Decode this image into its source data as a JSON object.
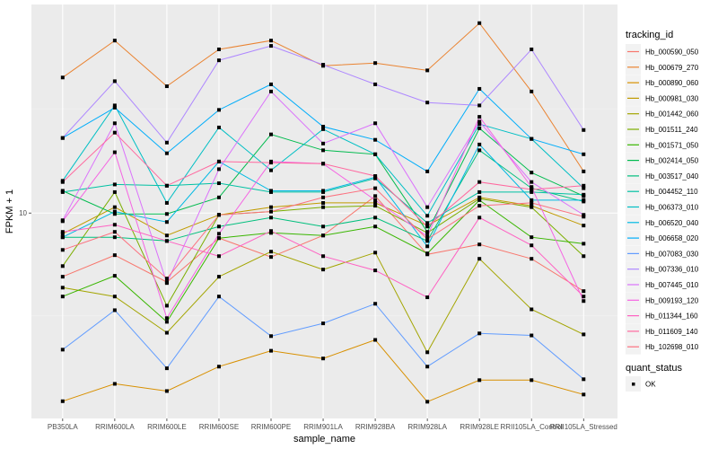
{
  "chart_data": {
    "type": "line",
    "title": "",
    "xlabel": "sample_name",
    "ylabel": "FPKM + 1",
    "yscale": "log10",
    "ylim": [
      2.54,
      40.2
    ],
    "yticks": [
      10
    ],
    "ytick_labels": [
      "10"
    ],
    "grid": true,
    "legend_position": "right",
    "categories": [
      "PB350LA",
      "RRIM600LA",
      "RRIM600LE",
      "RRIM600SE",
      "RRIM600PE",
      "RRIM901LA",
      "RRIM928BA",
      "RRIM928LA",
      "RRIM928LE",
      "RRII105LA_Control",
      "RRII105LA_Stressed"
    ],
    "legend": {
      "color_title": "tracking_id",
      "shape_title": "quant_status",
      "shape_entries": [
        "OK"
      ]
    },
    "series": [
      {
        "name": "Hb_000590_050",
        "color": "#F8766D",
        "values": [
          6.54,
          7.55,
          6.31,
          8.46,
          7.46,
          8.61,
          11.2,
          7.59,
          8.11,
          7.37,
          5.94
        ]
      },
      {
        "name": "Hb_000679_270",
        "color": "#EA8331",
        "values": [
          24.7,
          31.6,
          23.3,
          29.8,
          31.6,
          26.7,
          27.2,
          25.9,
          35.5,
          22.5,
          13.2
        ]
      },
      {
        "name": "Hb_000890_060",
        "color": "#D89000",
        "values": [
          2.85,
          3.2,
          3.05,
          3.59,
          3.99,
          3.79,
          4.29,
          2.84,
          3.28,
          3.28,
          2.98
        ]
      },
      {
        "name": "Hb_000981_030",
        "color": "#C09B00",
        "values": [
          8.71,
          10.4,
          8.61,
          9.88,
          10.4,
          10.7,
          10.7,
          9.2,
          11.1,
          10.5,
          9.2
        ]
      },
      {
        "name": "Hb_001442_060",
        "color": "#A3A500",
        "values": [
          6.08,
          5.73,
          4.5,
          6.54,
          7.73,
          6.86,
          7.68,
          3.95,
          7.37,
          5.26,
          4.45
        ]
      },
      {
        "name": "Hb_001511_240",
        "color": "#7CAE00",
        "values": [
          7.02,
          11.5,
          5.39,
          9.88,
          10.1,
          10.4,
          10.5,
          8.76,
          11.0,
          10.4,
          7.5
        ]
      },
      {
        "name": "Hb_001571_050",
        "color": "#39B600",
        "values": [
          5.73,
          6.58,
          4.84,
          8.46,
          8.76,
          8.61,
          9.14,
          7.64,
          10.9,
          8.51,
          8.15
        ]
      },
      {
        "name": "Hb_002414_050",
        "color": "#00BB4E",
        "values": [
          11.6,
          9.94,
          9.94,
          11.1,
          16.9,
          15.2,
          14.8,
          8.82,
          17.6,
          13.1,
          11.2
        ]
      },
      {
        "name": "Hb_003517_040",
        "color": "#00BF7D",
        "values": [
          8.51,
          8.51,
          8.3,
          9.14,
          9.7,
          9.14,
          9.7,
          8.3,
          15.2,
          11.8,
          10.8
        ]
      },
      {
        "name": "Hb_004452_110",
        "color": "#00C1A3",
        "values": [
          11.5,
          12.1,
          12.0,
          12.2,
          11.5,
          11.5,
          12.6,
          9.36,
          11.5,
          11.5,
          11.3
        ]
      },
      {
        "name": "Hb_006373_010",
        "color": "#00BFC4",
        "values": [
          12.4,
          20.5,
          10.7,
          17.7,
          13.3,
          17.5,
          14.8,
          9.82,
          18.1,
          16.4,
          11.8
        ]
      },
      {
        "name": "Hb_006520_040",
        "color": "#00B9E3",
        "values": [
          8.51,
          10.1,
          9.42,
          14.1,
          11.6,
          11.6,
          12.7,
          8.01,
          15.8,
          10.9,
          10.9
        ]
      },
      {
        "name": "Hb_006658_020",
        "color": "#00ADFA",
        "values": [
          16.5,
          20.2,
          14.9,
          19.9,
          23.6,
          17.8,
          16.3,
          13.2,
          22.9,
          16.4,
          14.8
        ]
      },
      {
        "name": "Hb_007083_030",
        "color": "#619CFF",
        "values": [
          4.02,
          5.23,
          3.55,
          5.73,
          4.4,
          4.79,
          5.46,
          3.59,
          4.48,
          4.42,
          3.3
        ]
      },
      {
        "name": "Hb_007336_010",
        "color": "#AE87FF",
        "values": [
          16.5,
          24.1,
          16.0,
          27.7,
          30.5,
          26.9,
          23.6,
          20.9,
          20.5,
          29.8,
          17.4
        ]
      },
      {
        "name": "Hb_007445_010",
        "color": "#DB72FB",
        "values": [
          9.53,
          18.2,
          6.27,
          13.4,
          22.5,
          15.9,
          18.2,
          10.4,
          18.4,
          12.3,
          9.88
        ]
      },
      {
        "name": "Hb_009193_120",
        "color": "#F564E3",
        "values": [
          9.47,
          15.0,
          4.96,
          8.71,
          14.1,
          13.9,
          10.9,
          8.56,
          19.0,
          11.9,
          5.56
        ]
      },
      {
        "name": "Hb_011344_160",
        "color": "#FF61C3",
        "values": [
          8.82,
          9.25,
          8.3,
          7.5,
          8.87,
          7.5,
          6.82,
          5.7,
          9.7,
          8.06,
          5.73
        ]
      },
      {
        "name": "Hb_011609_140",
        "color": "#FF689F",
        "values": [
          12.3,
          17.1,
          12.0,
          14.1,
          14.0,
          13.9,
          12.8,
          9.14,
          12.3,
          11.7,
          12.0
        ]
      },
      {
        "name": "Hb_102698_010",
        "color": "#FC717F",
        "values": [
          7.82,
          8.82,
          6.46,
          9.88,
          10.1,
          11.1,
          11.8,
          8.4,
          10.5,
          10.7,
          9.76
        ]
      }
    ]
  }
}
